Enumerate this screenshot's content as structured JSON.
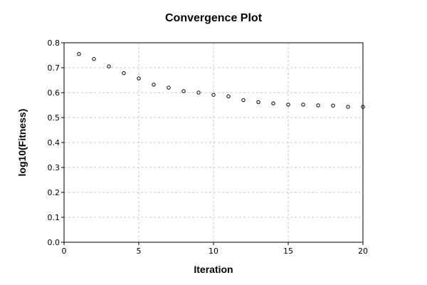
{
  "chart_data": {
    "type": "scatter",
    "title": "Convergence Plot",
    "xlabel": "Iteration",
    "ylabel": "log10(Fitness)",
    "xlim": [
      0,
      20
    ],
    "ylim": [
      0,
      0.8
    ],
    "xticks": [
      0,
      5,
      10,
      15,
      20
    ],
    "yticks": [
      0.0,
      0.1,
      0.2,
      0.3,
      0.4,
      0.5,
      0.6,
      0.7,
      0.8
    ],
    "xtick_labels": [
      "0",
      "5",
      "10",
      "15",
      "20"
    ],
    "ytick_labels": [
      "0.0",
      "0.1",
      "0.2",
      "0.3",
      "0.4",
      "0.5",
      "0.6",
      "0.7",
      "0.8"
    ],
    "grid": true,
    "marker": "open-circle",
    "marker_color": "#000000",
    "grid_color": "#c8c8c8",
    "x": [
      1,
      2,
      3,
      4,
      5,
      6,
      7,
      8,
      9,
      10,
      11,
      12,
      13,
      14,
      15,
      16,
      17,
      18,
      19,
      20
    ],
    "y": [
      0.755,
      0.735,
      0.705,
      0.678,
      0.657,
      0.632,
      0.62,
      0.606,
      0.6,
      0.591,
      0.585,
      0.57,
      0.562,
      0.557,
      0.552,
      0.552,
      0.549,
      0.548,
      0.543,
      0.543
    ]
  }
}
